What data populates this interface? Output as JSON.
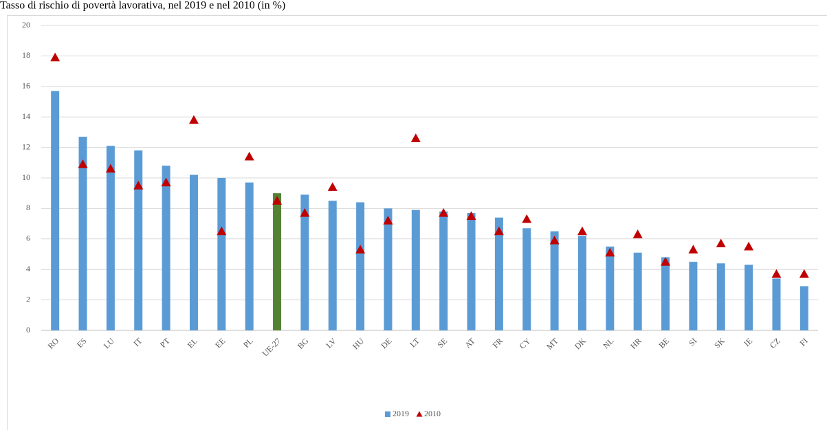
{
  "chart_data": {
    "type": "bar_marker",
    "title": "Tasso di rischio di povertà lavorativa, nel 2019 e nel 2010 (in %)",
    "categories": [
      "RO",
      "ES",
      "LU",
      "IT",
      "PT",
      "EL",
      "EE",
      "PL",
      "UE-27",
      "BG",
      "LV",
      "HU",
      "DE",
      "LT",
      "SE",
      "AT",
      "FR",
      "CY",
      "MT",
      "DK",
      "NL",
      "HR",
      "BE",
      "SI",
      "SK",
      "IE",
      "CZ",
      "FI"
    ],
    "series": [
      {
        "name": "2019",
        "color": "#5b9bd5",
        "highlight": {
          "UE-27": "#548235"
        },
        "values": [
          15.7,
          12.7,
          12.1,
          11.8,
          10.8,
          10.2,
          10.0,
          9.7,
          9.0,
          8.9,
          8.5,
          8.4,
          8.0,
          7.9,
          7.8,
          7.7,
          7.4,
          6.7,
          6.5,
          6.2,
          5.5,
          5.1,
          4.8,
          4.5,
          4.4,
          4.3,
          3.4,
          2.9
        ]
      },
      {
        "name": "2010",
        "color": "#c00000",
        "values": [
          17.9,
          10.9,
          10.6,
          9.5,
          9.7,
          13.8,
          6.5,
          11.4,
          8.5,
          7.7,
          9.4,
          5.3,
          7.2,
          12.6,
          7.7,
          7.5,
          6.5,
          7.3,
          5.9,
          6.5,
          5.1,
          6.3,
          4.5,
          5.3,
          5.7,
          5.5,
          3.7,
          3.7
        ]
      }
    ],
    "ylim": [
      0,
      20
    ],
    "yticks": [
      0,
      2,
      4,
      6,
      8,
      10,
      12,
      14,
      16,
      18,
      20
    ],
    "grid": true,
    "legend": "bottom"
  }
}
